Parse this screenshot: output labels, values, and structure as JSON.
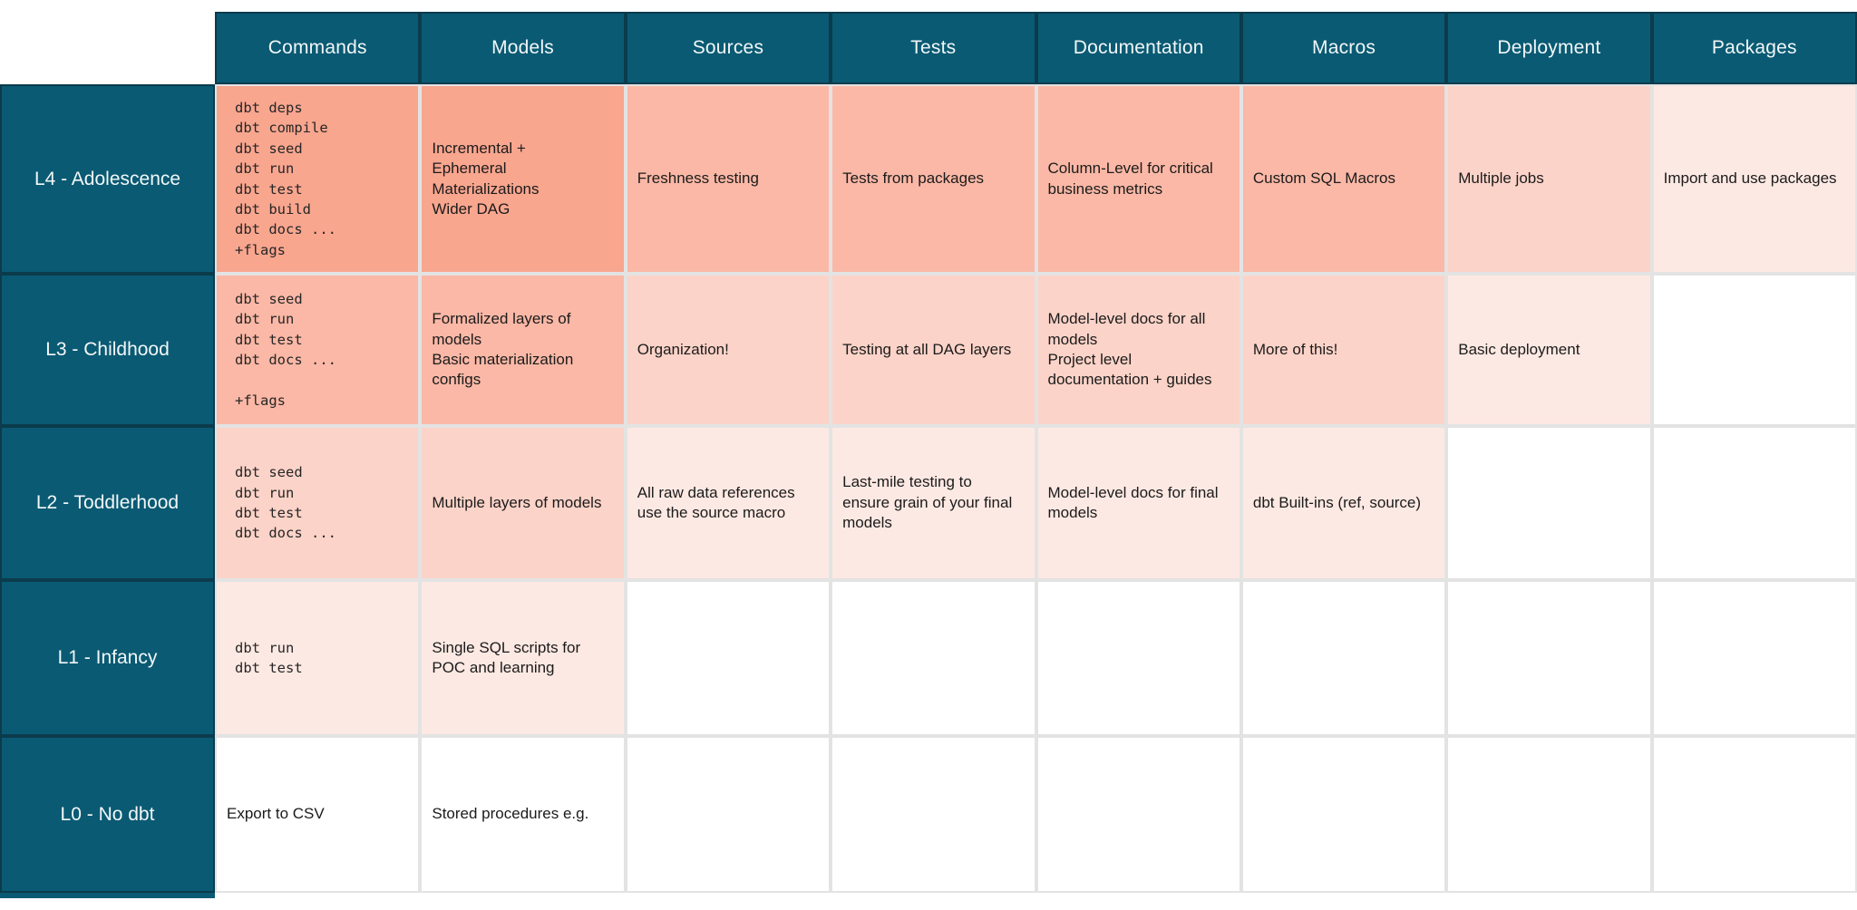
{
  "palette": {
    "header_teal": "#0A5A73",
    "header_border": "#0B3B4C",
    "heat_strong": "#F9A68F",
    "heat_medium": "#FBB8A6",
    "heat_light": "#FCD3C8",
    "heat_faint": "#FDE9E3",
    "grid_line": "#E3E3E3"
  },
  "columns": [
    "Commands",
    "Models",
    "Sources",
    "Tests",
    "Documentation",
    "Macros",
    "Deployment",
    "Packages"
  ],
  "rows": [
    {
      "label": "L4 - Adolescence",
      "cells": {
        "commands": "dbt deps\ndbt compile\ndbt seed\ndbt run\ndbt test\ndbt build\ndbt docs ...\n+flags",
        "models": "Incremental +\nEphemeral\nMaterializations\nWider DAG",
        "sources": "Freshness testing",
        "tests": "Tests from packages",
        "documentation": "Column-Level for critical\nbusiness metrics",
        "macros": "Custom SQL Macros",
        "deployment": "Multiple jobs",
        "packages": "Import and use packages"
      }
    },
    {
      "label": "L3 - Childhood",
      "cells": {
        "commands": "dbt seed\ndbt run\ndbt test\ndbt docs ...\n\n+flags",
        "models": "Formalized layers of\nmodels\nBasic materialization\nconfigs",
        "sources": "Organization!",
        "tests": "Testing at all DAG layers",
        "documentation": "Model-level docs for all\nmodels\nProject level\ndocumentation + guides",
        "macros": "More of this!",
        "deployment": "Basic deployment",
        "packages": ""
      }
    },
    {
      "label": "L2 - Toddlerhood",
      "cells": {
        "commands": "dbt seed\ndbt run\ndbt test\ndbt docs ...",
        "models": "Multiple layers of models",
        "sources": "All raw data references\nuse the source macro",
        "tests": "Last-mile testing to\nensure grain of your final\nmodels",
        "documentation": "Model-level docs for final\nmodels",
        "macros": "dbt Built-ins (ref, source)",
        "deployment": "",
        "packages": ""
      }
    },
    {
      "label": "L1 - Infancy",
      "cells": {
        "commands": "dbt run\ndbt test",
        "models": "Single SQL scripts for\nPOC and learning",
        "sources": "",
        "tests": "",
        "documentation": "",
        "macros": "",
        "deployment": "",
        "packages": ""
      }
    },
    {
      "label": "L0 - No dbt",
      "cells": {
        "commands": "Export to CSV",
        "models": "Stored procedures e.g.",
        "sources": "",
        "tests": "",
        "documentation": "",
        "macros": "",
        "deployment": "",
        "packages": ""
      }
    }
  ]
}
